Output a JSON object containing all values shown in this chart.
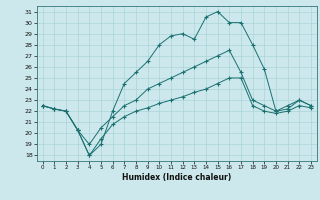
{
  "xlabel": "Humidex (Indice chaleur)",
  "bg_color": "#cce8ec",
  "grid_color": "#aad4d8",
  "line_color": "#1a7070",
  "xlim": [
    -0.5,
    23.5
  ],
  "ylim": [
    17.5,
    31.5
  ],
  "yticks": [
    18,
    19,
    20,
    21,
    22,
    23,
    24,
    25,
    26,
    27,
    28,
    29,
    30,
    31
  ],
  "xticks": [
    0,
    1,
    2,
    3,
    4,
    5,
    6,
    7,
    8,
    9,
    10,
    11,
    12,
    13,
    14,
    15,
    16,
    17,
    18,
    19,
    20,
    21,
    22,
    23
  ],
  "series1_x": [
    0,
    1,
    2,
    3,
    4,
    5,
    6,
    7,
    8,
    9,
    10,
    11,
    12,
    13,
    14,
    15,
    16,
    17,
    18,
    19,
    20,
    21,
    22,
    23
  ],
  "series1_y": [
    22.5,
    22.2,
    22.0,
    20.3,
    18.0,
    19.0,
    22.0,
    24.5,
    25.5,
    26.5,
    28.0,
    28.8,
    29.0,
    28.5,
    30.5,
    31.0,
    30.0,
    30.0,
    28.0,
    25.8,
    22.0,
    22.5,
    23.0,
    22.5
  ],
  "series2_x": [
    0,
    1,
    2,
    3,
    4,
    5,
    6,
    7,
    8,
    9,
    10,
    11,
    12,
    13,
    14,
    15,
    16,
    17,
    18,
    19,
    20,
    21,
    22,
    23
  ],
  "series2_y": [
    22.5,
    22.2,
    22.0,
    20.3,
    19.0,
    20.5,
    21.5,
    22.5,
    23.0,
    24.0,
    24.5,
    25.0,
    25.5,
    26.0,
    26.5,
    27.0,
    27.5,
    25.5,
    23.0,
    22.5,
    22.0,
    22.2,
    23.0,
    22.5
  ],
  "series3_x": [
    0,
    1,
    2,
    3,
    4,
    5,
    6,
    7,
    8,
    9,
    10,
    11,
    12,
    13,
    14,
    15,
    16,
    17,
    18,
    19,
    20,
    21,
    22,
    23
  ],
  "series3_y": [
    22.5,
    22.2,
    22.0,
    20.3,
    18.0,
    19.5,
    20.8,
    21.5,
    22.0,
    22.3,
    22.7,
    23.0,
    23.3,
    23.7,
    24.0,
    24.5,
    25.0,
    25.0,
    22.5,
    22.0,
    21.8,
    22.0,
    22.5,
    22.3
  ]
}
